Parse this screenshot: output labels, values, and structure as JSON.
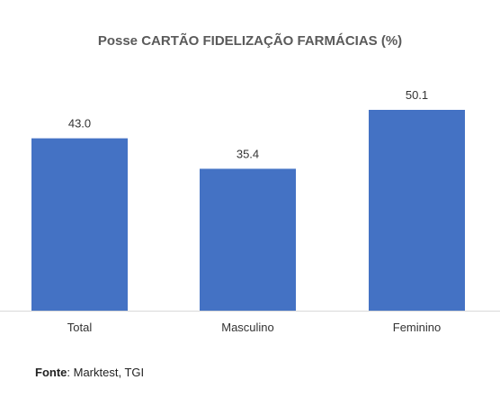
{
  "chart_data": {
    "type": "bar",
    "title": "Posse CARTÃO FIDELIZAÇÃO FARMÁCIAS (%)",
    "categories": [
      "Total",
      "Masculino",
      "Feminino"
    ],
    "values": [
      43.0,
      35.4,
      50.1
    ],
    "data_labels": [
      "43.0",
      "35.4",
      "50.1"
    ],
    "xlabel": "",
    "ylabel": "",
    "ylim": [
      0,
      60
    ],
    "grid": false,
    "legend": "none",
    "bar_color": "#4472C4"
  },
  "source": {
    "label": "Fonte",
    "text": ": Marktest, TGI"
  }
}
